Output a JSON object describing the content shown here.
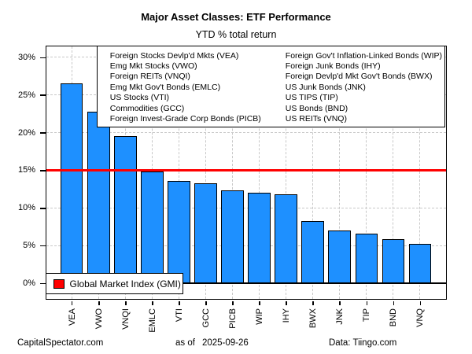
{
  "title": "Major Asset Classes: ETF Performance",
  "subtitle": "YTD % total return",
  "etf_legend": {
    "col1": [
      "Foreign Stocks Devlp'd Mkts (VEA)",
      "Emg Mkt Stocks (VWO)",
      "Foreign REITs (VNQI)",
      "Emg Mkt Gov't Bonds (EMLC)",
      "US Stocks (VTI)",
      "Commodities (GCC)",
      "Foreign Invest-Grade Corp Bonds (PICB)"
    ],
    "col2": [
      "Foreign Gov't Inflation-Linked Bonds (WIP)",
      "Foreign Junk Bonds (IHY)",
      "Foreign Devlp'd Mkt Gov't Bonds (BWX)",
      "US Junk Bonds (JNK)",
      "US TIPS (TIP)",
      "US Bonds (BND)",
      "US REITs (VNQ)"
    ]
  },
  "gmi_legend": {
    "label": "Global Market Index (GMI)",
    "swatch_color": "#FF0000"
  },
  "footer": {
    "left": "CapitalSpectator.com",
    "asof_label": "as of",
    "asof_date": "2025-09-26",
    "right": "Data: Tiingo.com"
  },
  "colors": {
    "background": "#FFFFFF",
    "bar_fill": "#1E90FF",
    "bar_border": "#000000",
    "reference_line": "#FF0000",
    "grid_line": "#C8C8C8",
    "text": "#000000"
  },
  "chart_data": {
    "type": "bar",
    "title": "Major Asset Classes: ETF Performance",
    "subtitle": "YTD % total return",
    "categories": [
      "VEA",
      "VWO",
      "VNQI",
      "EMLC",
      "VTI",
      "GCC",
      "PICB",
      "WIP",
      "IHY",
      "BWX",
      "JNK",
      "TIP",
      "BND",
      "VNQ"
    ],
    "values": [
      26.5,
      22.8,
      19.5,
      14.8,
      13.6,
      13.3,
      12.3,
      12.0,
      11.8,
      8.3,
      7.0,
      6.6,
      5.8,
      5.2
    ],
    "xlabel": "",
    "ylabel": "YTD % total return",
    "yticks": [
      0,
      5,
      10,
      15,
      20,
      25,
      30
    ],
    "ytick_labels": [
      "0%",
      "5%",
      "10%",
      "15%",
      "20%",
      "25%",
      "30%"
    ],
    "ylim": [
      -2.2,
      31.5
    ],
    "grid": true,
    "legend_position": "top-right",
    "reference_line": {
      "value": 15,
      "color": "#FF0000",
      "label": "Global Market Index (GMI)"
    }
  }
}
